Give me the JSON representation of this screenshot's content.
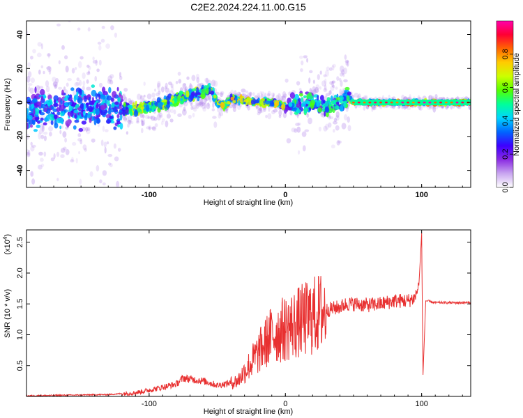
{
  "title": "C2E2.2024.224.11.00.G15",
  "chart_data": [
    {
      "type": "heatmap",
      "xlabel": "Height of straight line (km)",
      "ylabel": "Frequency (Hz)",
      "xlim": [
        -190,
        136
      ],
      "ylim": [
        -50,
        48
      ],
      "xticks": [
        -100,
        0,
        100
      ],
      "yticks": [
        -40,
        -20,
        0,
        20,
        40
      ],
      "colorbar": {
        "label": "Normalized spectral amplitude",
        "range": [
          0,
          1
        ],
        "ticks": [
          "0.0",
          "0.2",
          "0.4",
          "0.6",
          "0.8"
        ],
        "colors": [
          "#ffffff",
          "#c9a6f0",
          "#8a2be2",
          "#3d00ff",
          "#0066ff",
          "#00d5ff",
          "#00ff99",
          "#55ff00",
          "#ccff00",
          "#ffcc00",
          "#ff6600",
          "#ff0033",
          "#ff00aa"
        ]
      },
      "ridge": {
        "x": [
          -190,
          -150,
          -120,
          -100,
          -90,
          -80,
          -70,
          -60,
          -55,
          -50,
          -45,
          -40,
          -30,
          -20,
          -10,
          -5,
          0,
          10,
          20,
          30,
          40,
          46,
          50,
          60,
          80,
          100,
          120,
          136
        ],
        "y": [
          -5,
          -3,
          -4,
          -3,
          -1,
          2,
          4,
          6,
          8,
          0,
          -2,
          2,
          1,
          0,
          0,
          -1,
          -2,
          0,
          0,
          -2,
          0,
          3,
          0,
          0,
          0,
          0,
          0,
          0
        ]
      }
    },
    {
      "type": "line",
      "xlabel": "Height of straight line (km)",
      "ylabel": "SNR (10 * v/v)",
      "y_multiplier": "(x10",
      "y_multiplier_exp": "4",
      "y_multiplier_close": ")",
      "xlim": [
        -190,
        136
      ],
      "ylim": [
        0.0,
        2.7
      ],
      "xticks": [
        -100,
        0,
        100
      ],
      "yticks": [
        0.5,
        1.0,
        1.5,
        2.0,
        2.5
      ],
      "color": "#e83030",
      "series": [
        {
          "x": [
            -190,
            -160,
            -130,
            -110,
            -100,
            -90,
            -80,
            -75,
            -70,
            -60,
            -50,
            -40,
            -35,
            -30,
            -25,
            -20,
            -15,
            -10,
            -5,
            0,
            10,
            20,
            30,
            40,
            45,
            50,
            60,
            70,
            80,
            90,
            95,
            98,
            100,
            101,
            103,
            110,
            120,
            136
          ],
          "y": [
            0.01,
            0.02,
            0.03,
            0.06,
            0.1,
            0.15,
            0.2,
            0.3,
            0.28,
            0.25,
            0.18,
            0.22,
            0.25,
            0.4,
            0.55,
            0.7,
            0.85,
            1.0,
            1.05,
            1.1,
            1.2,
            1.3,
            1.4,
            1.45,
            1.5,
            1.5,
            1.48,
            1.5,
            1.55,
            1.55,
            1.6,
            1.8,
            2.65,
            0.35,
            1.55,
            1.52,
            1.52,
            1.52
          ]
        }
      ]
    }
  ]
}
